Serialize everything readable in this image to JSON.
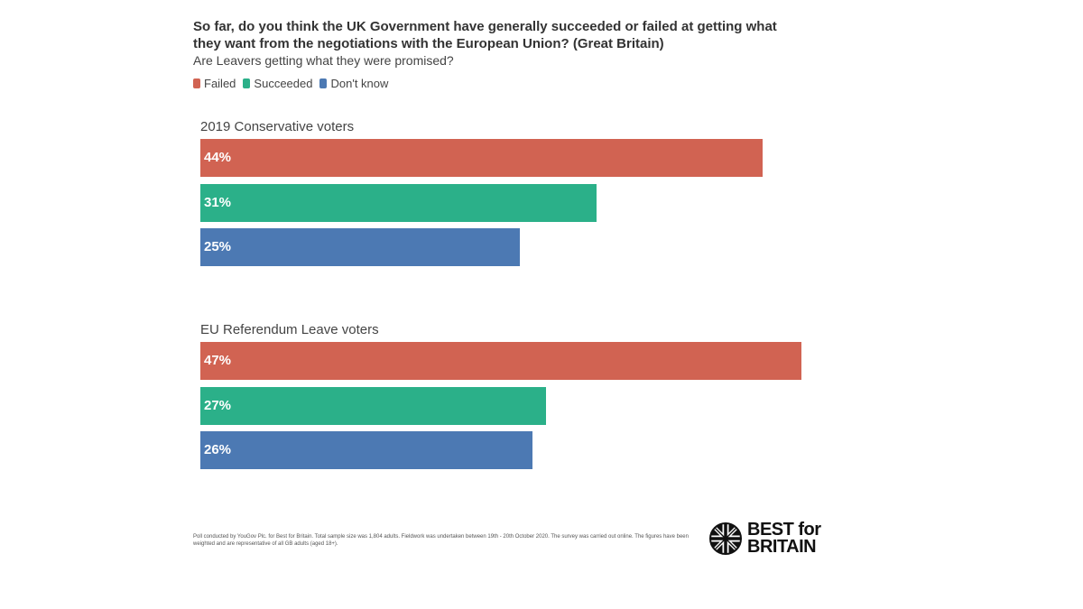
{
  "header": {
    "title": "So far, do you think the UK Government have generally succeeded or failed at getting what they want from the negotiations with the European Union? (Great Britain)",
    "subtitle": "Are Leavers getting what they were promised?"
  },
  "legend": [
    {
      "label": "Failed",
      "color": "#D16352"
    },
    {
      "label": "Succeeded",
      "color": "#2BB089"
    },
    {
      "label": "Don't know",
      "color": "#4C79B3"
    }
  ],
  "chart_data": {
    "type": "bar",
    "orientation": "horizontal",
    "categories": [
      "Failed",
      "Succeeded",
      "Don't know"
    ],
    "groups": [
      {
        "name": "2019 Conservative voters",
        "values": [
          44,
          31,
          25
        ],
        "labels": [
          "44%",
          "31%",
          "25%"
        ]
      },
      {
        "name": "EU Referendum Leave voters",
        "values": [
          47,
          27,
          26
        ],
        "labels": [
          "47%",
          "27%",
          "26%"
        ]
      }
    ],
    "colors": [
      "#D16352",
      "#2BB089",
      "#4C79B3"
    ],
    "xlim": [
      0,
      47
    ],
    "grid": false,
    "legend_position": "top-left"
  },
  "footer": {
    "note": "Poll conducted by YouGov Plc. for Best for Britain. Total sample size was 1,804 adults. Fieldwork was undertaken between 19th - 20th October 2020. The survey was carried out online. The figures have been weighted and are representative of all GB adults (aged 18+).",
    "logo_line1": "BEST for",
    "logo_line2": "BRITAIN"
  }
}
